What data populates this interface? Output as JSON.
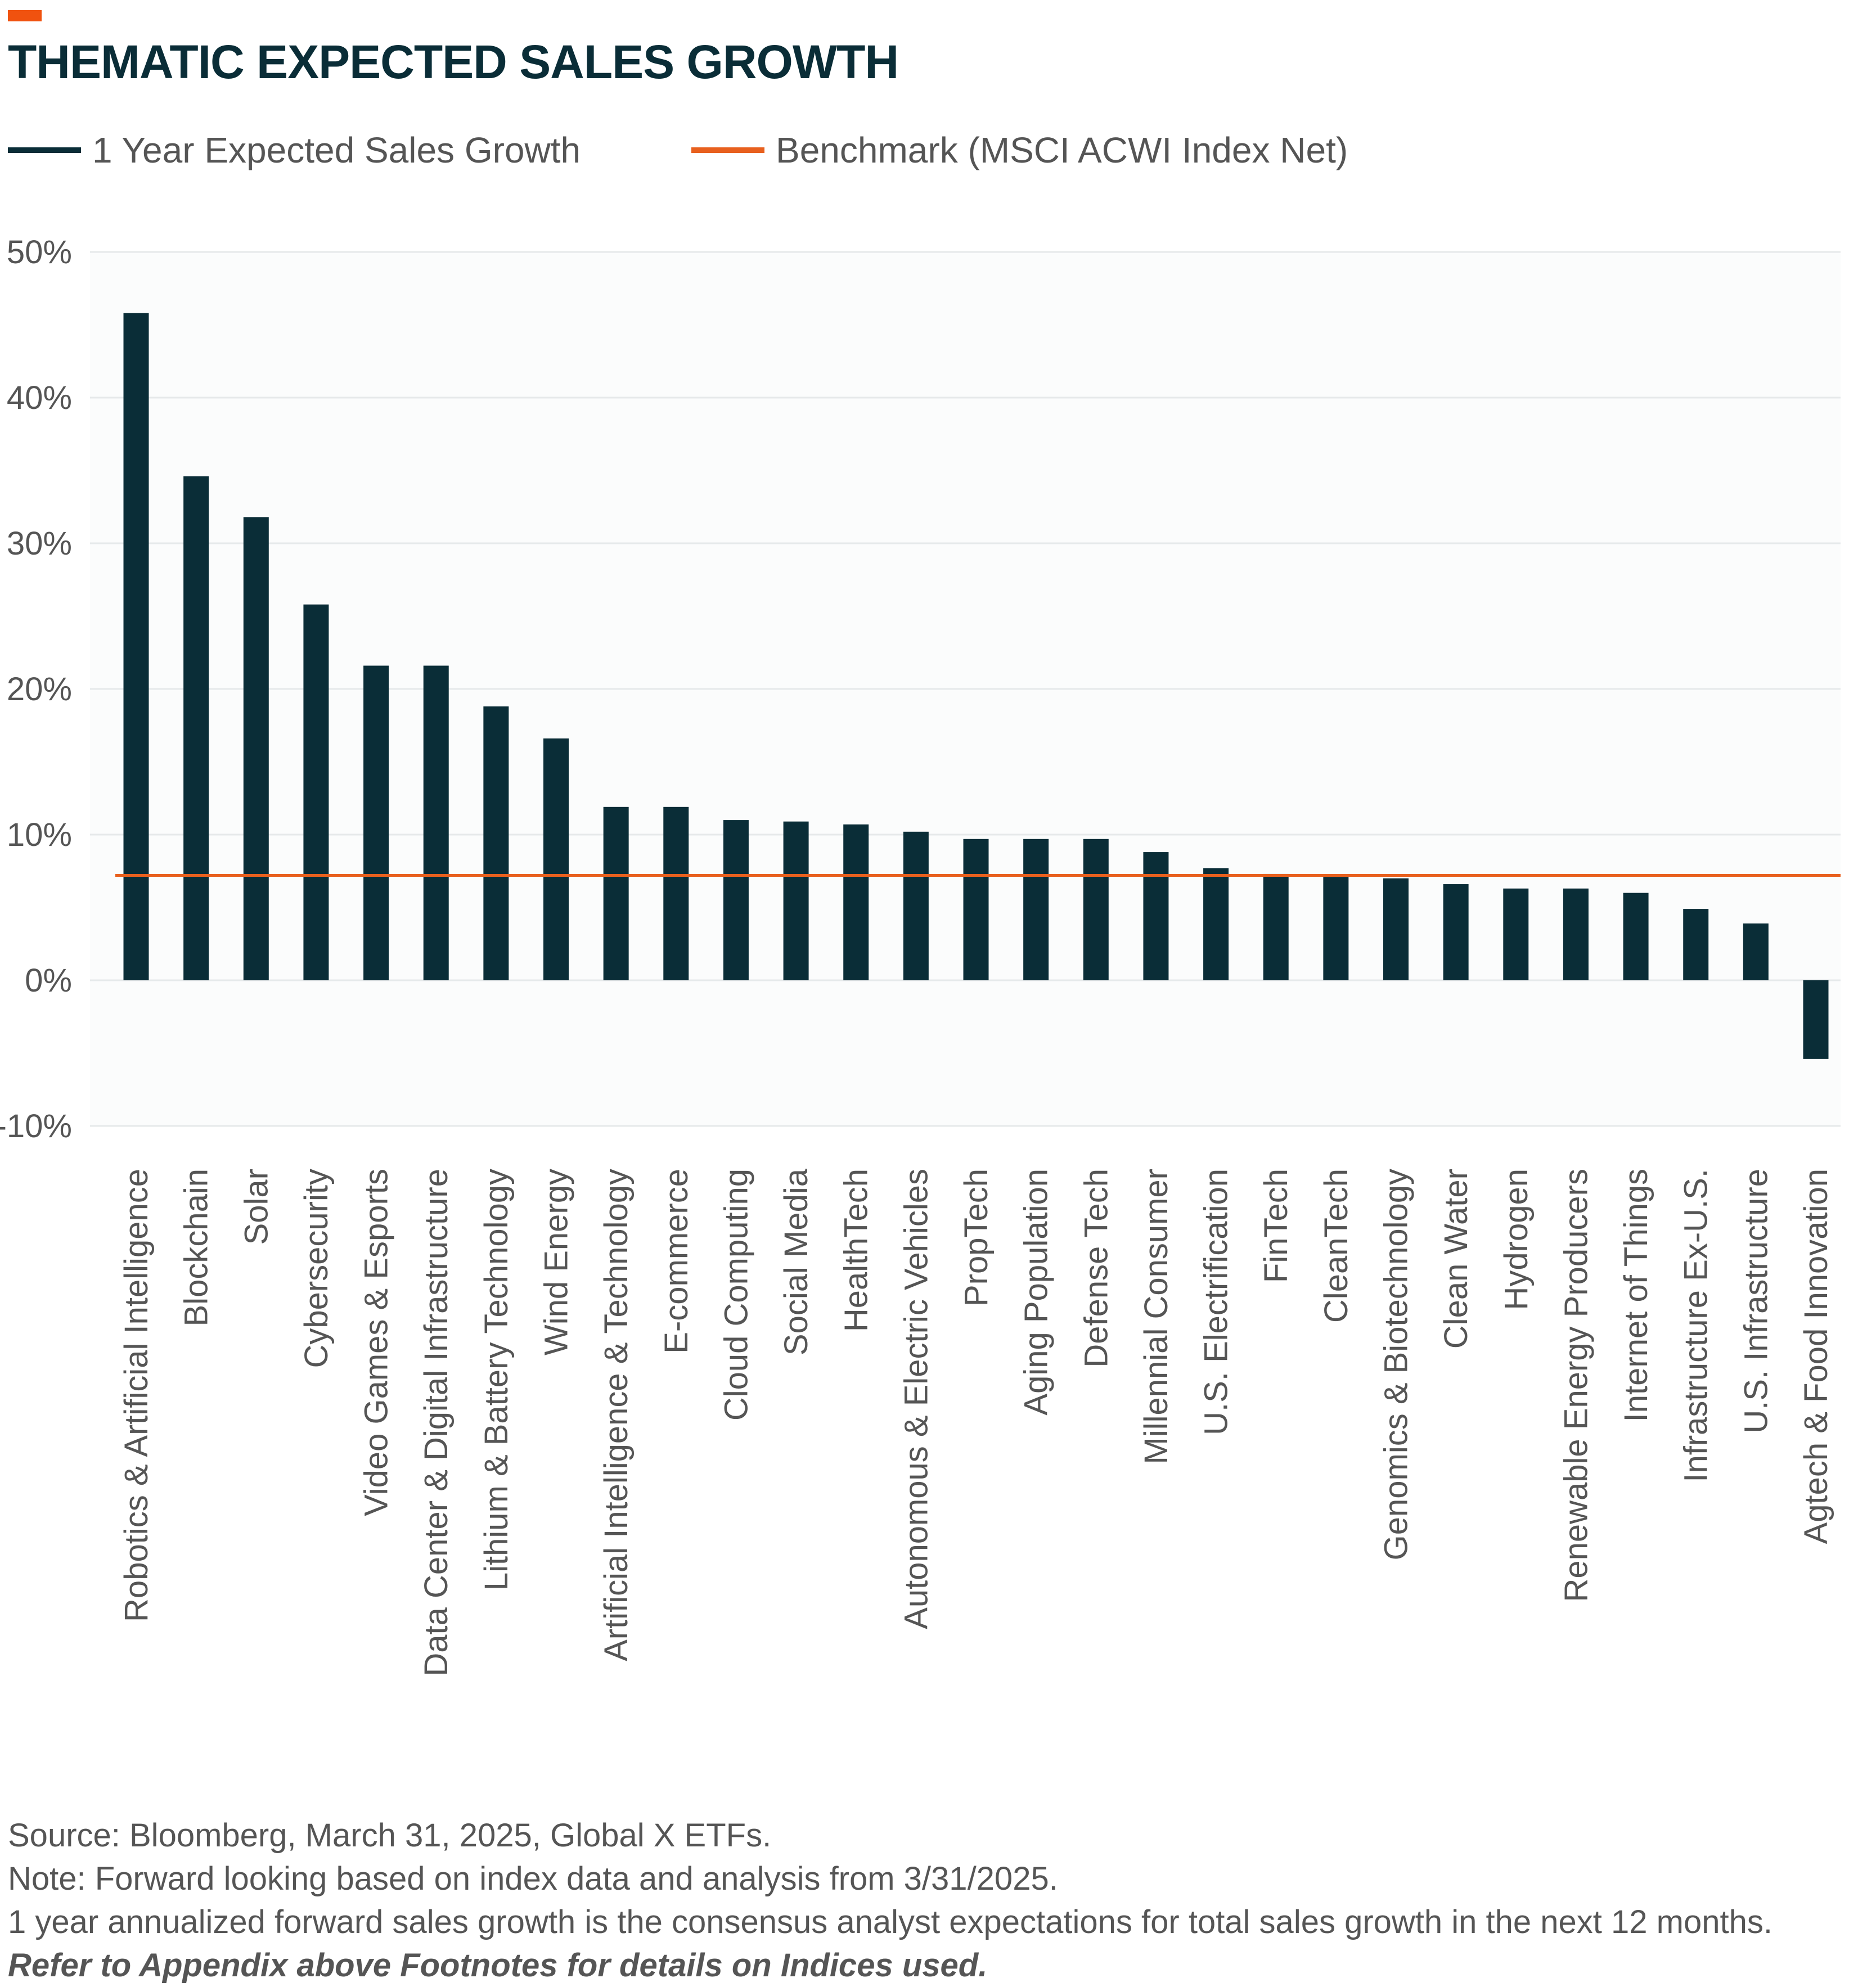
{
  "title": "THEMATIC EXPECTED SALES GROWTH",
  "colors": {
    "accent": "#f0520f",
    "bar": "#0a2d37",
    "benchmark": "#e8601e",
    "plot_background": "#fbfcfc",
    "gridline": "#e6e9ea",
    "text": "#555555"
  },
  "legend": [
    {
      "label": "1 Year Expected Sales Growth",
      "color": "#0a2d37"
    },
    {
      "label": "Benchmark (MSCI ACWI Index Net)",
      "color": "#e8601e"
    }
  ],
  "chart_data": {
    "type": "bar",
    "title": "THEMATIC EXPECTED SALES GROWTH",
    "xlabel": "",
    "ylabel": "",
    "ylim": [
      -10,
      50
    ],
    "y_ticks": [
      -10,
      0,
      10,
      20,
      30,
      40,
      50
    ],
    "y_tick_labels": [
      "-10%",
      "0%",
      "10%",
      "20%",
      "30%",
      "40%",
      "50%"
    ],
    "grid": true,
    "legend_position": "top-left",
    "categories": [
      "Robotics & Artificial Intelligence",
      "Blockchain",
      "Solar",
      "Cybersecurity",
      "Video Games & Esports",
      "Data Center & Digital Infrastructure",
      "Lithium & Battery Technology",
      "Wind Energy",
      "Artificial Intelligence & Technology",
      "E-commerce",
      "Cloud Computing",
      "Social Media",
      "HealthTech",
      "Autonomous & Electric Vehicles",
      "PropTech",
      "Aging Population",
      "Defense Tech",
      "Millennial Consumer",
      "U.S. Electrification",
      "FinTech",
      "CleanTech",
      "Genomics & Biotechnology",
      "Clean Water",
      "Hydrogen",
      "Renewable Energy Producers",
      "Internet of Things",
      "Infrastructure Ex-U.S.",
      "U.S. Infrastructure",
      "Agtech & Food Innovation"
    ],
    "series": [
      {
        "name": "1 Year Expected Sales Growth",
        "values": [
          45.8,
          34.6,
          31.8,
          25.8,
          21.6,
          21.6,
          18.8,
          16.6,
          11.9,
          11.9,
          11.0,
          10.9,
          10.7,
          10.2,
          9.7,
          9.7,
          9.7,
          8.8,
          7.7,
          7.3,
          7.1,
          7.0,
          6.6,
          6.3,
          6.3,
          6.0,
          4.9,
          3.9,
          -5.4
        ]
      }
    ],
    "benchmark": {
      "name": "Benchmark (MSCI ACWI Index Net)",
      "value": 7.2
    }
  },
  "footnotes": [
    {
      "text": "Source: Bloomberg, March 31, 2025, Global X ETFs.",
      "emphasis": false
    },
    {
      "text": "Note: Forward looking based on index data and analysis from 3/31/2025.",
      "emphasis": false
    },
    {
      "text": "1 year annualized forward sales growth is the consensus analyst expectations for total sales growth in the next 12 months.",
      "emphasis": false
    },
    {
      "text": "Refer to Appendix above Footnotes for details on Indices used.",
      "emphasis": true
    }
  ]
}
